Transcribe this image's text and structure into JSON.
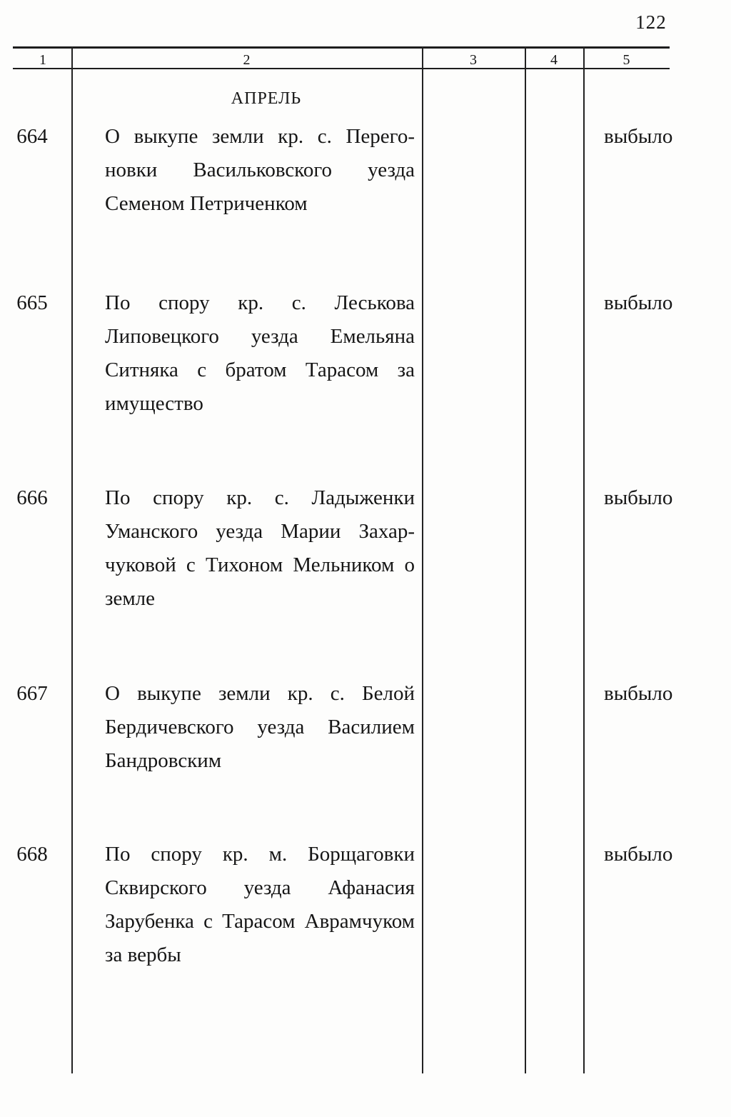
{
  "page": {
    "number": "122"
  },
  "table": {
    "headers": [
      "1",
      "2",
      "3",
      "4",
      "5"
    ],
    "month_header": "АПРЕЛЬ",
    "rows": [
      {
        "no": "664",
        "status": "выбыло",
        "lines": [
          "О выкупе земли кр. с. Перего-",
          "новки Васильковского уезда",
          "Семеном Петриченком"
        ]
      },
      {
        "no": "665",
        "status": "выбыло",
        "lines": [
          "По спору кр. с. Леськова",
          "Липовецкого уезда Емельяна",
          "Ситняка с братом Тарасом за",
          "имущество"
        ]
      },
      {
        "no": "666",
        "status": "выбыло",
        "lines": [
          "По спору кр. с. Ладыженки",
          "Уманского уезда Марии Захар-",
          "чуковой с Тихоном Мельником о",
          "земле"
        ]
      },
      {
        "no": "667",
        "status": "выбыло",
        "lines": [
          "О выкупе земли кр. с. Белой",
          "Бердичевского уезда Василием",
          "Бандровским"
        ]
      },
      {
        "no": "668",
        "status": "выбыло",
        "lines": [
          "По спору кр. м. Борщаговки",
          "Сквирского уезда Афанасия",
          "Зарубенка с Тарасом Аврамчуком",
          "за вербы"
        ]
      }
    ]
  }
}
